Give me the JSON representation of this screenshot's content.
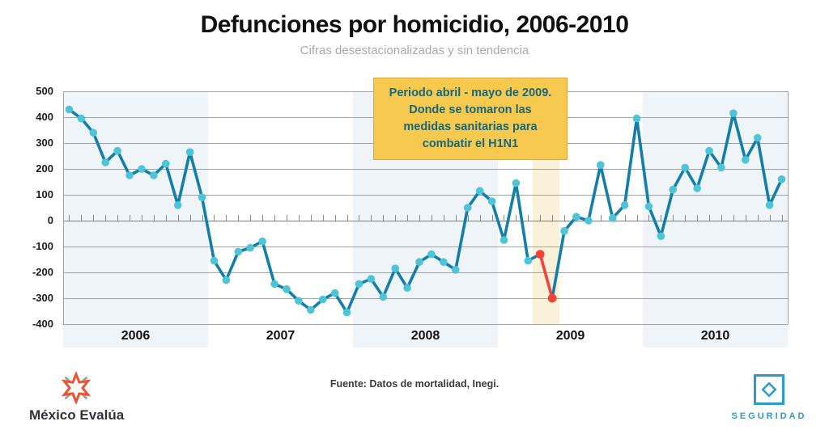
{
  "header": {
    "title": "Defunciones por homicidio, 2006-2010",
    "subtitle": "Cifras desestacionalizadas y sin tendencia"
  },
  "annotation": {
    "lines": [
      "Periodo abril - mayo de 2009.",
      "Donde se tomaron las",
      "medidas sanitarias para",
      "combatir el H1N1"
    ],
    "fill": "#F7C94F",
    "border": "#DBA73E",
    "text_color": "#17677A"
  },
  "chart_data": {
    "type": "line",
    "title": "Defunciones por homicidio, 2006-2010",
    "subtitle": "Cifras desestacionalizadas y sin tendencia",
    "x_unit": "month",
    "start_month": "2006-01",
    "end_month": "2010-12",
    "years": [
      "2006",
      "2007",
      "2008",
      "2009",
      "2010"
    ],
    "y_ticks": [
      500,
      400,
      300,
      200,
      100,
      0,
      -100,
      -200,
      -300,
      -400
    ],
    "ylim": [
      -400,
      500
    ],
    "grid": "horizontal",
    "legend": "none",
    "series": [
      {
        "name": "Defunciones por homicidio (cifras desestacionalizadas y sin tendencia)",
        "values": [
          430,
          395,
          340,
          225,
          270,
          175,
          200,
          175,
          220,
          60,
          265,
          90,
          -155,
          -230,
          -120,
          -105,
          -80,
          -245,
          -265,
          -310,
          -345,
          -305,
          -280,
          -355,
          -245,
          -225,
          -295,
          -185,
          -260,
          -160,
          -130,
          -160,
          -190,
          50,
          115,
          75,
          -75,
          145,
          -155,
          -130,
          -300,
          -40,
          15,
          0,
          215,
          10,
          60,
          395,
          55,
          -60,
          120,
          205,
          125,
          270,
          205,
          415,
          235,
          320,
          60,
          160
        ]
      }
    ],
    "highlight": {
      "indices": [
        39,
        40
      ],
      "months": [
        "2009-04",
        "2009-05"
      ],
      "reason": "Periodo abril - mayo de 2009, medidas sanitarias contra el H1N1"
    },
    "colors": {
      "line": "#137EA8",
      "marker": "#4EC4D6",
      "highlight": "#F2423B",
      "year_band": "#EFF4F8",
      "highlight_band": "#FAF1DA",
      "grid": "#A3A3A3"
    }
  },
  "footer": {
    "source": "Fuente: Datos de mortalidad, Inegi.",
    "brand": "México Evalúa",
    "program": "SEGURIDAD",
    "brand_star_color": "#F0512F",
    "brand_accent_color": "#9FA2A4",
    "program_color": "#2A9CC9"
  }
}
